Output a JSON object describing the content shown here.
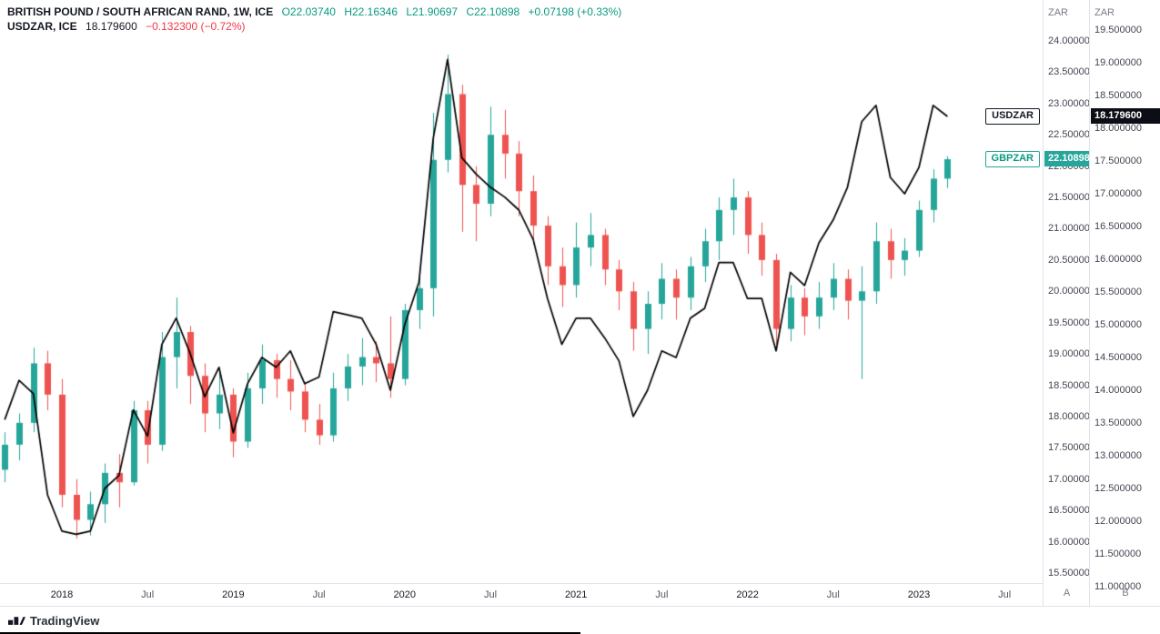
{
  "header": {
    "symbol_line": {
      "title": "BRITISH POUND / SOUTH AFRICAN RAND, 1W, ICE",
      "open": "O22.03740",
      "high": "H22.16346",
      "low": "L21.90697",
      "close": "C22.10898",
      "change": "+0.07198 (+0.33%)"
    },
    "overlay_line": {
      "title": "USDZAR, ICE",
      "value": "18.179600",
      "change": "−0.132300 (−0.72%)"
    }
  },
  "price_axes": {
    "gbpzar": {
      "currency_label": "ZAR",
      "scale_button": "A",
      "badge": {
        "label": "GBPZAR",
        "value": "22.10898"
      },
      "ticks": [
        "24.00000",
        "23.50000",
        "23.00000",
        "22.50000",
        "22.00000",
        "21.50000",
        "21.00000",
        "20.50000",
        "20.00000",
        "19.50000",
        "19.00000",
        "18.50000",
        "18.00000",
        "17.50000",
        "17.00000",
        "16.50000",
        "16.00000",
        "15.50000"
      ]
    },
    "usdzar": {
      "currency_label": "ZAR",
      "scale_button": "B",
      "badge": {
        "label": "USDZAR",
        "value": "18.179600"
      },
      "ticks": [
        "19.500000",
        "19.000000",
        "18.500000",
        "18.000000",
        "17.500000",
        "17.000000",
        "16.500000",
        "16.000000",
        "15.500000",
        "15.000000",
        "14.500000",
        "14.000000",
        "13.500000",
        "13.000000",
        "12.500000",
        "12.000000",
        "11.500000",
        "11.000000"
      ]
    }
  },
  "time_axis": {
    "labels": [
      {
        "text": "2018",
        "t": "2018-01",
        "type": "year"
      },
      {
        "text": "Jul",
        "t": "2018-07",
        "type": "month"
      },
      {
        "text": "2019",
        "t": "2019-01",
        "type": "year"
      },
      {
        "text": "Jul",
        "t": "2019-07",
        "type": "month"
      },
      {
        "text": "2020",
        "t": "2020-01",
        "type": "year"
      },
      {
        "text": "Jul",
        "t": "2020-07",
        "type": "month"
      },
      {
        "text": "2021",
        "t": "2021-01",
        "type": "year"
      },
      {
        "text": "Jul",
        "t": "2021-07",
        "type": "month"
      },
      {
        "text": "2022",
        "t": "2022-01",
        "type": "year"
      },
      {
        "text": "Jul",
        "t": "2022-07",
        "type": "month"
      },
      {
        "text": "2023",
        "t": "2023-01",
        "type": "year"
      },
      {
        "text": "Jul",
        "t": "2023-07",
        "type": "month"
      }
    ]
  },
  "footer": {
    "brand": "TradingView"
  },
  "chart_data": {
    "type": "candlestick",
    "title": "BRITISH POUND / SOUTH AFRICAN RAND, 1W, ICE",
    "interval_displayed": "1W",
    "sampling": "values estimated from plot at monthly resolution",
    "axes": {
      "gbpzar": {
        "range": [
          15.5,
          24.0
        ],
        "tick_step": 0.5,
        "currency": "ZAR",
        "side": "right-inner"
      },
      "usdzar": {
        "range": [
          11.0,
          19.5
        ],
        "tick_step": 0.5,
        "currency": "ZAR",
        "side": "right-outer"
      },
      "time": {
        "start": "2017-09",
        "end": "2023-07"
      }
    },
    "grid": "off",
    "series": [
      {
        "name": "GBPZAR",
        "type": "candlestick",
        "price_scale": "gbpzar",
        "up_color": "#26a69a",
        "down_color": "#ef5350",
        "columns": [
          "t",
          "o",
          "h",
          "l",
          "c"
        ],
        "points": [
          [
            "2017-09",
            17.15,
            17.75,
            16.95,
            17.55
          ],
          [
            "2017-10",
            17.55,
            18.05,
            17.3,
            17.9
          ],
          [
            "2017-11",
            17.9,
            19.1,
            17.75,
            18.85
          ],
          [
            "2017-12",
            18.85,
            19.05,
            18.1,
            18.35
          ],
          [
            "2018-01",
            18.35,
            18.6,
            16.55,
            16.75
          ],
          [
            "2018-02",
            16.75,
            17.0,
            16.05,
            16.35
          ],
          [
            "2018-03",
            16.35,
            16.8,
            16.1,
            16.6
          ],
          [
            "2018-04",
            16.6,
            17.25,
            16.3,
            17.1
          ],
          [
            "2018-05",
            17.1,
            17.4,
            16.55,
            16.95
          ],
          [
            "2018-06",
            16.95,
            18.25,
            16.9,
            18.1
          ],
          [
            "2018-07",
            18.1,
            18.25,
            17.25,
            17.55
          ],
          [
            "2018-08",
            17.55,
            19.35,
            17.45,
            18.95
          ],
          [
            "2018-09",
            18.95,
            19.9,
            18.45,
            19.35
          ],
          [
            "2018-10",
            19.35,
            19.45,
            18.2,
            18.65
          ],
          [
            "2018-11",
            18.65,
            18.85,
            17.75,
            18.05
          ],
          [
            "2018-12",
            18.05,
            18.7,
            17.8,
            18.35
          ],
          [
            "2019-01",
            18.35,
            18.45,
            17.35,
            17.6
          ],
          [
            "2019-02",
            17.6,
            18.7,
            17.5,
            18.45
          ],
          [
            "2019-03",
            18.45,
            19.15,
            18.2,
            18.9
          ],
          [
            "2019-04",
            18.9,
            19.0,
            18.3,
            18.6
          ],
          [
            "2019-05",
            18.6,
            18.9,
            18.1,
            18.4
          ],
          [
            "2019-06",
            18.4,
            18.55,
            17.75,
            17.95
          ],
          [
            "2019-07",
            17.95,
            18.2,
            17.55,
            17.7
          ],
          [
            "2019-08",
            17.7,
            18.7,
            17.6,
            18.45
          ],
          [
            "2019-09",
            18.45,
            19.0,
            18.25,
            18.8
          ],
          [
            "2019-10",
            18.8,
            19.25,
            18.5,
            18.95
          ],
          [
            "2019-11",
            18.95,
            19.2,
            18.55,
            18.85
          ],
          [
            "2019-12",
            18.85,
            19.6,
            18.3,
            18.6
          ],
          [
            "2020-01",
            18.6,
            19.8,
            18.5,
            19.7
          ],
          [
            "2020-02",
            19.7,
            20.25,
            19.4,
            20.05
          ],
          [
            "2020-03",
            20.05,
            22.85,
            19.6,
            22.1
          ],
          [
            "2020-04",
            22.1,
            23.78,
            21.9,
            23.15
          ],
          [
            "2020-05",
            23.15,
            23.3,
            20.95,
            21.7
          ],
          [
            "2020-06",
            21.7,
            22.0,
            20.8,
            21.4
          ],
          [
            "2020-07",
            21.4,
            22.95,
            21.2,
            22.5
          ],
          [
            "2020-08",
            22.5,
            22.9,
            21.8,
            22.2
          ],
          [
            "2020-09",
            22.2,
            22.4,
            21.2,
            21.6
          ],
          [
            "2020-10",
            21.6,
            21.85,
            20.75,
            21.05
          ],
          [
            "2020-11",
            21.05,
            21.2,
            20.1,
            20.4
          ],
          [
            "2020-12",
            20.4,
            20.7,
            19.75,
            20.1
          ],
          [
            "2021-01",
            20.1,
            21.1,
            19.9,
            20.7
          ],
          [
            "2021-02",
            20.7,
            21.25,
            20.4,
            20.9
          ],
          [
            "2021-03",
            20.9,
            21.0,
            20.1,
            20.35
          ],
          [
            "2021-04",
            20.35,
            20.5,
            19.7,
            20.0
          ],
          [
            "2021-05",
            20.0,
            20.15,
            19.05,
            19.4
          ],
          [
            "2021-06",
            19.4,
            20.0,
            19.0,
            19.8
          ],
          [
            "2021-07",
            19.8,
            20.45,
            19.55,
            20.2
          ],
          [
            "2021-08",
            20.2,
            20.35,
            19.55,
            19.9
          ],
          [
            "2021-09",
            19.9,
            20.55,
            19.7,
            20.4
          ],
          [
            "2021-10",
            20.4,
            21.0,
            20.15,
            20.8
          ],
          [
            "2021-11",
            20.8,
            21.5,
            20.5,
            21.3
          ],
          [
            "2021-12",
            21.3,
            21.8,
            20.9,
            21.5
          ],
          [
            "2022-01",
            21.5,
            21.6,
            20.6,
            20.9
          ],
          [
            "2022-02",
            20.9,
            21.1,
            20.25,
            20.5
          ],
          [
            "2022-03",
            20.5,
            20.6,
            19.15,
            19.4
          ],
          [
            "2022-04",
            19.4,
            20.1,
            19.2,
            19.9
          ],
          [
            "2022-05",
            19.9,
            20.05,
            19.3,
            19.6
          ],
          [
            "2022-06",
            19.6,
            20.15,
            19.4,
            19.9
          ],
          [
            "2022-07",
            19.9,
            20.45,
            19.7,
            20.2
          ],
          [
            "2022-08",
            20.2,
            20.35,
            19.55,
            19.85
          ],
          [
            "2022-09",
            19.85,
            20.4,
            18.6,
            20.0
          ],
          [
            "2022-10",
            20.0,
            21.1,
            19.8,
            20.8
          ],
          [
            "2022-11",
            20.8,
            21.0,
            20.2,
            20.5
          ],
          [
            "2022-12",
            20.5,
            20.85,
            20.25,
            20.65
          ],
          [
            "2023-01",
            20.65,
            21.45,
            20.55,
            21.3
          ],
          [
            "2023-02",
            21.3,
            21.95,
            21.1,
            21.8
          ],
          [
            "2023-03",
            21.8,
            22.16,
            21.65,
            22.11
          ]
        ]
      },
      {
        "name": "USDZAR",
        "type": "line",
        "price_scale": "usdzar",
        "color": "#000000",
        "last_value": 18.1796,
        "columns": [
          "t",
          "v"
        ],
        "points": [
          [
            "2017-09",
            13.55
          ],
          [
            "2017-10",
            14.15
          ],
          [
            "2017-11",
            13.95
          ],
          [
            "2017-12",
            12.4
          ],
          [
            "2018-01",
            11.85
          ],
          [
            "2018-02",
            11.8
          ],
          [
            "2018-03",
            11.85
          ],
          [
            "2018-04",
            12.5
          ],
          [
            "2018-05",
            12.7
          ],
          [
            "2018-06",
            13.7
          ],
          [
            "2018-07",
            13.3
          ],
          [
            "2018-08",
            14.7
          ],
          [
            "2018-09",
            15.1
          ],
          [
            "2018-10",
            14.55
          ],
          [
            "2018-11",
            13.9
          ],
          [
            "2018-12",
            14.35
          ],
          [
            "2019-01",
            13.35
          ],
          [
            "2019-02",
            14.1
          ],
          [
            "2019-03",
            14.5
          ],
          [
            "2019-04",
            14.35
          ],
          [
            "2019-05",
            14.6
          ],
          [
            "2019-06",
            14.1
          ],
          [
            "2019-07",
            14.2
          ],
          [
            "2019-08",
            15.2
          ],
          [
            "2019-09",
            15.15
          ],
          [
            "2019-10",
            15.1
          ],
          [
            "2019-11",
            14.7
          ],
          [
            "2019-12",
            14.0
          ],
          [
            "2020-01",
            15.0
          ],
          [
            "2020-02",
            15.65
          ],
          [
            "2020-03",
            17.85
          ],
          [
            "2020-04",
            19.05
          ],
          [
            "2020-05",
            17.55
          ],
          [
            "2020-06",
            17.3
          ],
          [
            "2020-07",
            17.1
          ],
          [
            "2020-08",
            16.95
          ],
          [
            "2020-09",
            16.75
          ],
          [
            "2020-10",
            16.3
          ],
          [
            "2020-11",
            15.4
          ],
          [
            "2020-12",
            14.7
          ],
          [
            "2021-01",
            15.1
          ],
          [
            "2021-02",
            15.1
          ],
          [
            "2021-03",
            14.8
          ],
          [
            "2021-04",
            14.45
          ],
          [
            "2021-05",
            13.6
          ],
          [
            "2021-06",
            14.0
          ],
          [
            "2021-07",
            14.6
          ],
          [
            "2021-08",
            14.5
          ],
          [
            "2021-09",
            15.1
          ],
          [
            "2021-10",
            15.25
          ],
          [
            "2021-11",
            15.95
          ],
          [
            "2021-12",
            15.95
          ],
          [
            "2022-01",
            15.4
          ],
          [
            "2022-02",
            15.4
          ],
          [
            "2022-03",
            14.6
          ],
          [
            "2022-04",
            15.8
          ],
          [
            "2022-05",
            15.6
          ],
          [
            "2022-06",
            16.25
          ],
          [
            "2022-07",
            16.6
          ],
          [
            "2022-08",
            17.1
          ],
          [
            "2022-09",
            18.1
          ],
          [
            "2022-10",
            18.35
          ],
          [
            "2022-11",
            17.25
          ],
          [
            "2022-12",
            17.0
          ],
          [
            "2023-01",
            17.4
          ],
          [
            "2023-02",
            18.35
          ],
          [
            "2023-03",
            18.18
          ]
        ]
      }
    ]
  }
}
